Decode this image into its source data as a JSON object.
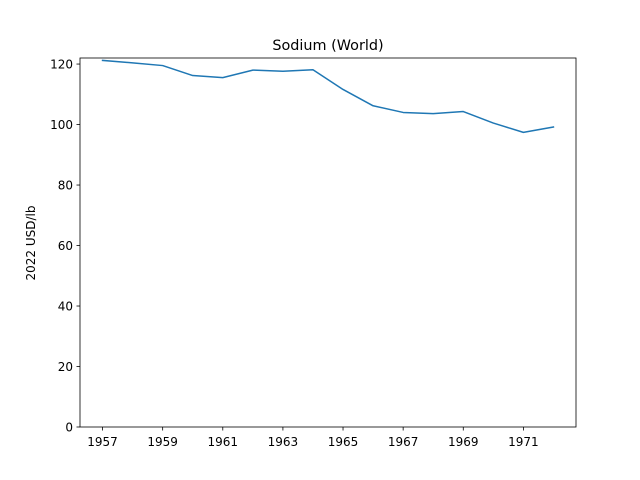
{
  "chart_data": {
    "type": "line",
    "title": "Sodium (World)",
    "xlabel": "",
    "ylabel": "2022 USD/lb",
    "x": [
      1957,
      1958,
      1959,
      1960,
      1961,
      1962,
      1963,
      1964,
      1965,
      1966,
      1967,
      1968,
      1969,
      1970,
      1971,
      1972
    ],
    "series": [
      {
        "values": [
          121.2,
          120.4,
          119.5,
          116.2,
          115.5,
          118.0,
          117.6,
          118.1,
          111.6,
          106.2,
          104.0,
          103.6,
          104.3,
          100.5,
          97.4,
          99.2
        ],
        "color": "#1f77b4"
      }
    ],
    "xlim": [
      1956.25,
      1972.75
    ],
    "ylim": [
      0,
      122
    ],
    "xticks": [
      1957,
      1959,
      1961,
      1963,
      1965,
      1967,
      1969,
      1971
    ],
    "yticks": [
      0,
      20,
      40,
      60,
      80,
      100,
      120
    ],
    "grid": false,
    "legend": "none"
  }
}
